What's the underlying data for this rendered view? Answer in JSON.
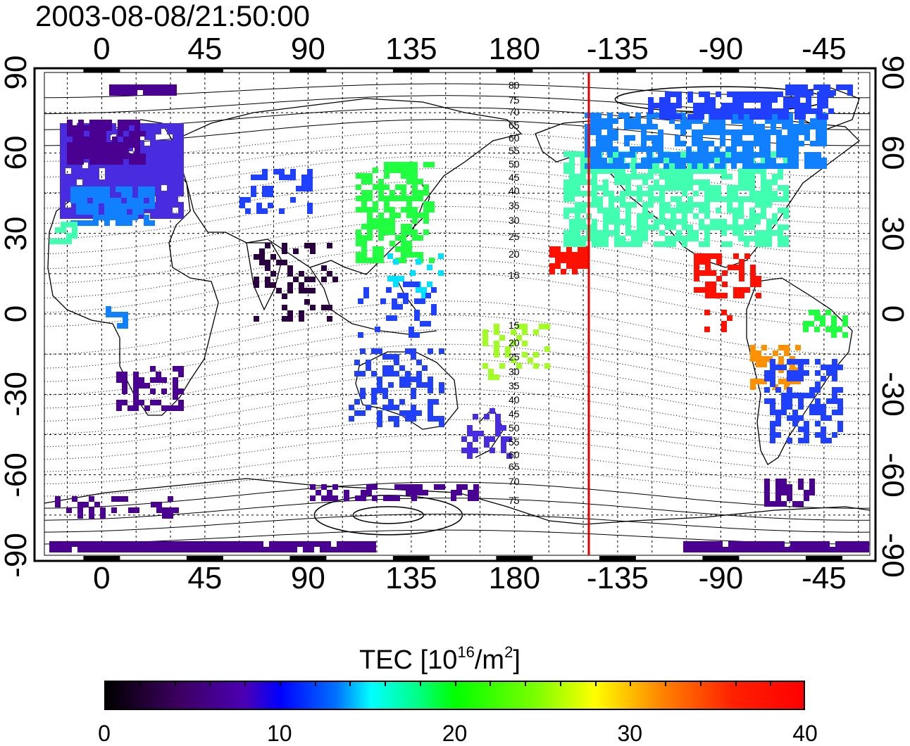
{
  "title": "2003-08-08/21:50:00",
  "map": {
    "lon_ticks_top": [
      "0",
      "45",
      "90",
      "135",
      "180",
      "-135",
      "-90",
      "-45"
    ],
    "lon_ticks_bottom": [
      "0",
      "45",
      "90",
      "135",
      "180",
      "-135",
      "-90",
      "-45"
    ],
    "lat_ticks_left": [
      "90",
      "60",
      "30",
      "0",
      "-30",
      "-60",
      "-90"
    ],
    "lat_ticks_right": [
      "90",
      "60",
      "30",
      "0",
      "-30",
      "-60",
      "-90"
    ],
    "lon_range": [
      -25,
      335
    ],
    "lat_range": [
      -90,
      90
    ],
    "terminator_color": "#e00000",
    "contour_labels_north": [
      "80",
      "75",
      "70",
      "65",
      "60",
      "55",
      "50",
      "45",
      "40",
      "35",
      "30",
      "25",
      "20",
      "15"
    ],
    "contour_labels_south": [
      "15",
      "20",
      "25",
      "30",
      "35",
      "40",
      "45",
      "50",
      "55",
      "60",
      "65",
      "70",
      "75"
    ]
  },
  "colorbar": {
    "title": "TEC  [10",
    "title_sup1": "16",
    "title_mid": "/m",
    "title_sup2": "2",
    "title_end": "]",
    "tick_labels": [
      "0",
      "10",
      "20",
      "30",
      "40"
    ],
    "range": [
      0,
      40
    ]
  }
}
